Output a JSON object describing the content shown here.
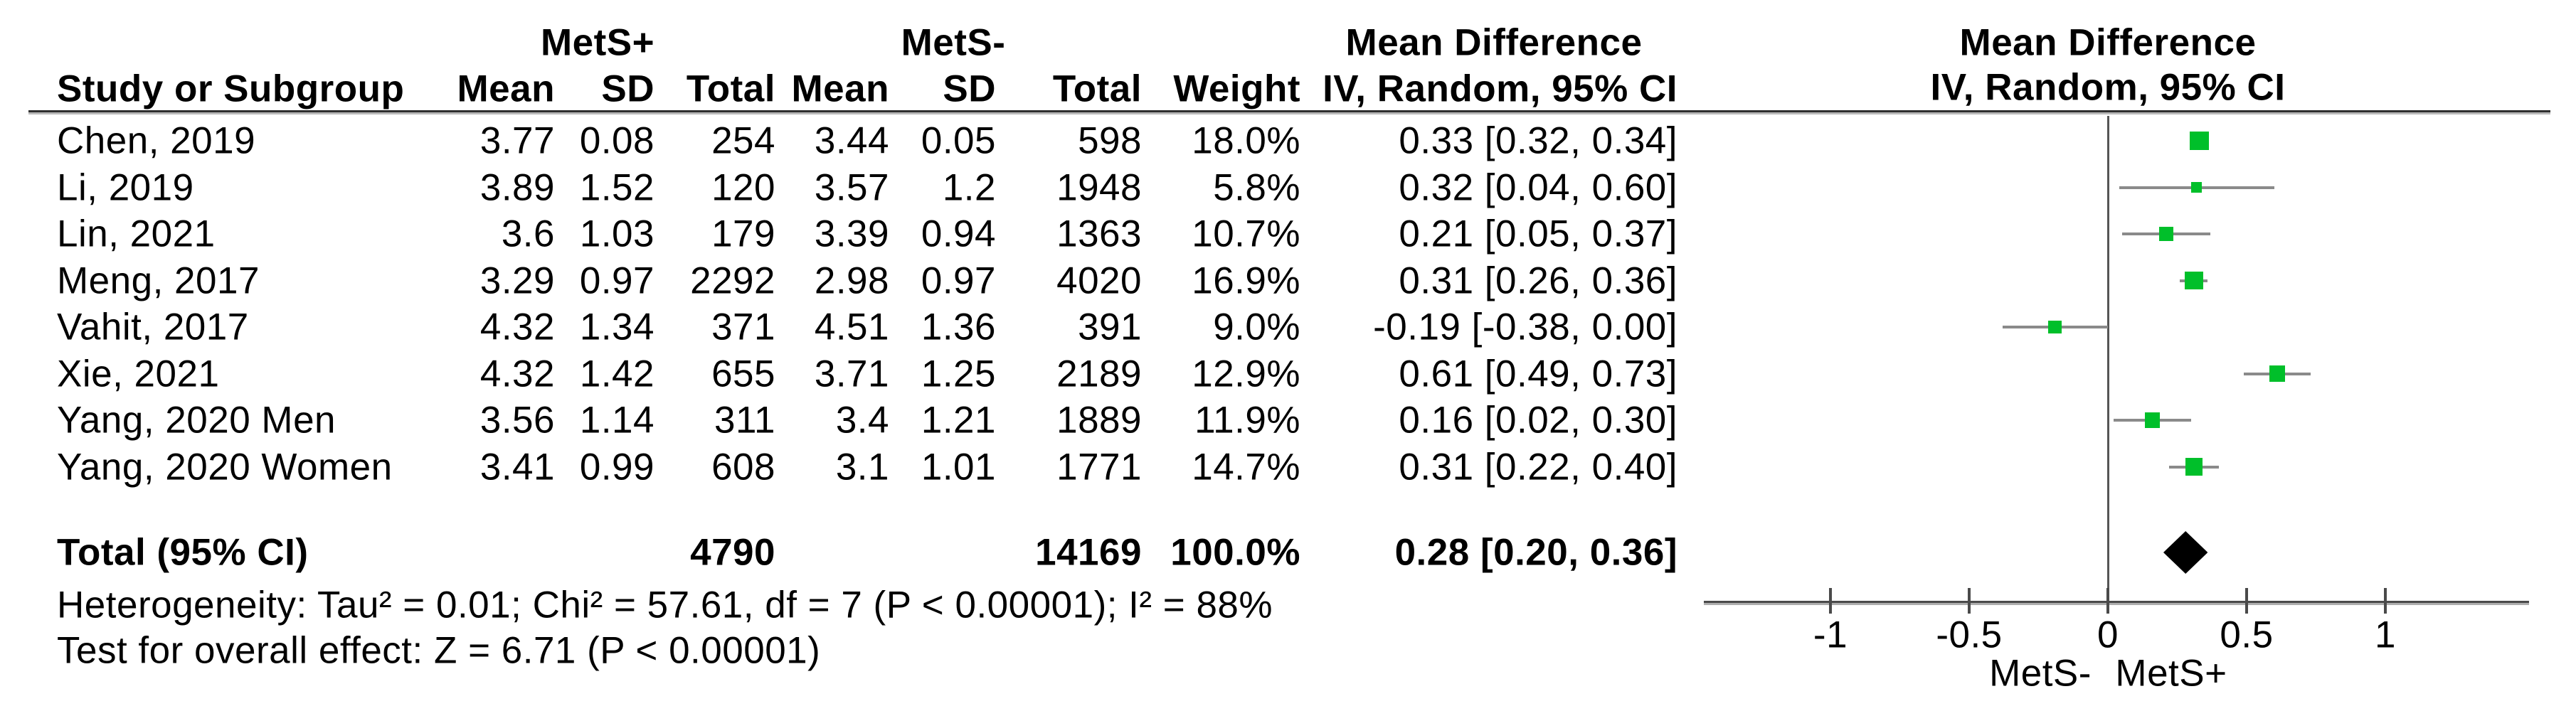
{
  "table": {
    "group1_label": "MetS+",
    "group2_label": "MetS-",
    "md_header": "Mean Difference",
    "col_headers": {
      "study": "Study or Subgroup",
      "mean": "Mean",
      "sd": "SD",
      "total": "Total",
      "weight": "Weight",
      "ci": "IV, Random, 95% CI"
    },
    "studies": [
      {
        "name": "Chen, 2019",
        "mean1": "3.77",
        "sd1": "0.08",
        "total1": "254",
        "mean2": "3.44",
        "sd2": "0.05",
        "total2": "598",
        "weight": "18.0%",
        "ci_text": "0.33 [0.32, 0.34]",
        "est": 0.33,
        "lo": 0.32,
        "hi": 0.34,
        "weight_val": 18.0
      },
      {
        "name": "Li, 2019",
        "mean1": "3.89",
        "sd1": "1.52",
        "total1": "120",
        "mean2": "3.57",
        "sd2": "1.2",
        "total2": "1948",
        "weight": "5.8%",
        "ci_text": "0.32 [0.04, 0.60]",
        "est": 0.32,
        "lo": 0.04,
        "hi": 0.6,
        "weight_val": 5.8
      },
      {
        "name": "Lin, 2021",
        "mean1": "3.6",
        "sd1": "1.03",
        "total1": "179",
        "mean2": "3.39",
        "sd2": "0.94",
        "total2": "1363",
        "weight": "10.7%",
        "ci_text": "0.21 [0.05, 0.37]",
        "est": 0.21,
        "lo": 0.05,
        "hi": 0.37,
        "weight_val": 10.7
      },
      {
        "name": "Meng, 2017",
        "mean1": "3.29",
        "sd1": "0.97",
        "total1": "2292",
        "mean2": "2.98",
        "sd2": "0.97",
        "total2": "4020",
        "weight": "16.9%",
        "ci_text": "0.31 [0.26, 0.36]",
        "est": 0.31,
        "lo": 0.26,
        "hi": 0.36,
        "weight_val": 16.9
      },
      {
        "name": "Vahit,  2017",
        "mean1": "4.32",
        "sd1": "1.34",
        "total1": "371",
        "mean2": "4.51",
        "sd2": "1.36",
        "total2": "391",
        "weight": "9.0%",
        "ci_text": "-0.19 [-0.38, 0.00]",
        "est": -0.19,
        "lo": -0.38,
        "hi": 0.0,
        "weight_val": 9.0
      },
      {
        "name": "Xie, 2021",
        "mean1": "4.32",
        "sd1": "1.42",
        "total1": "655",
        "mean2": "3.71",
        "sd2": "1.25",
        "total2": "2189",
        "weight": "12.9%",
        "ci_text": "0.61 [0.49, 0.73]",
        "est": 0.61,
        "lo": 0.49,
        "hi": 0.73,
        "weight_val": 12.9
      },
      {
        "name": "Yang, 2020 Men",
        "mean1": "3.56",
        "sd1": "1.14",
        "total1": "311",
        "mean2": "3.4",
        "sd2": "1.21",
        "total2": "1889",
        "weight": "11.9%",
        "ci_text": "0.16 [0.02, 0.30]",
        "est": 0.16,
        "lo": 0.02,
        "hi": 0.3,
        "weight_val": 11.9
      },
      {
        "name": "Yang, 2020 Women",
        "mean1": "3.41",
        "sd1": "0.99",
        "total1": "608",
        "mean2": "3.1",
        "sd2": "1.01",
        "total2": "1771",
        "weight": "14.7%",
        "ci_text": "0.31 [0.22, 0.40]",
        "est": 0.31,
        "lo": 0.22,
        "hi": 0.4,
        "weight_val": 14.7
      }
    ],
    "total": {
      "label": "Total (95% CI)",
      "total1": "4790",
      "total2": "14169",
      "weight": "100.0%",
      "ci_text": "0.28 [0.20, 0.36]",
      "est": 0.28,
      "lo": 0.2,
      "hi": 0.36
    },
    "heterogeneity": "Heterogeneity: Tau² = 0.01; Chi² = 57.61, df = 7 (P < 0.00001); I² = 88%",
    "overall_effect": "Test for overall effect: Z = 6.71 (P < 0.00001)"
  },
  "plot": {
    "header_line1": "Mean Difference",
    "header_line2": "IV, Random, 95% CI",
    "tick_labels": [
      "-1",
      "-0.5",
      "0",
      "0.5",
      "1"
    ],
    "ticks": [
      -1,
      -0.5,
      0,
      0.5,
      1
    ],
    "left_caption": "MetS-",
    "right_caption": "MetS+",
    "marker_color": "#00bf2a",
    "ci_line_color": "#8a8a8a",
    "diamond_color": "#000000"
  },
  "chart_data": {
    "type": "scatter",
    "subtype": "forest-plot",
    "title": "Mean Difference, IV, Random, 95% CI",
    "xlabel_left": "MetS-",
    "xlabel_right": "MetS+",
    "xlim": [
      -1.46,
      1.52
    ],
    "xticks": [
      -1,
      -0.5,
      0,
      0.5,
      1
    ],
    "series": [
      {
        "name": "Chen, 2019",
        "mean_difference": 0.33,
        "ci_lower": 0.32,
        "ci_upper": 0.34,
        "weight_pct": 18.0
      },
      {
        "name": "Li, 2019",
        "mean_difference": 0.32,
        "ci_lower": 0.04,
        "ci_upper": 0.6,
        "weight_pct": 5.8
      },
      {
        "name": "Lin, 2021",
        "mean_difference": 0.21,
        "ci_lower": 0.05,
        "ci_upper": 0.37,
        "weight_pct": 10.7
      },
      {
        "name": "Meng, 2017",
        "mean_difference": 0.31,
        "ci_lower": 0.26,
        "ci_upper": 0.36,
        "weight_pct": 16.9
      },
      {
        "name": "Vahit, 2017",
        "mean_difference": -0.19,
        "ci_lower": -0.38,
        "ci_upper": 0.0,
        "weight_pct": 9.0
      },
      {
        "name": "Xie, 2021",
        "mean_difference": 0.61,
        "ci_lower": 0.49,
        "ci_upper": 0.73,
        "weight_pct": 12.9
      },
      {
        "name": "Yang, 2020 Men",
        "mean_difference": 0.16,
        "ci_lower": 0.02,
        "ci_upper": 0.3,
        "weight_pct": 11.9
      },
      {
        "name": "Yang, 2020 Women",
        "mean_difference": 0.31,
        "ci_lower": 0.22,
        "ci_upper": 0.4,
        "weight_pct": 14.7
      }
    ],
    "total": {
      "name": "Total (95% CI)",
      "mean_difference": 0.28,
      "ci_lower": 0.2,
      "ci_upper": 0.36,
      "weight_pct": 100.0,
      "n_mets_plus": 4790,
      "n_mets_minus": 14169
    },
    "heterogeneity": {
      "tau2": 0.01,
      "chi2": 57.61,
      "df": 7,
      "p": "< 0.00001",
      "i2_pct": 88
    },
    "overall_effect": {
      "z": 6.71,
      "p": "< 0.00001"
    }
  }
}
